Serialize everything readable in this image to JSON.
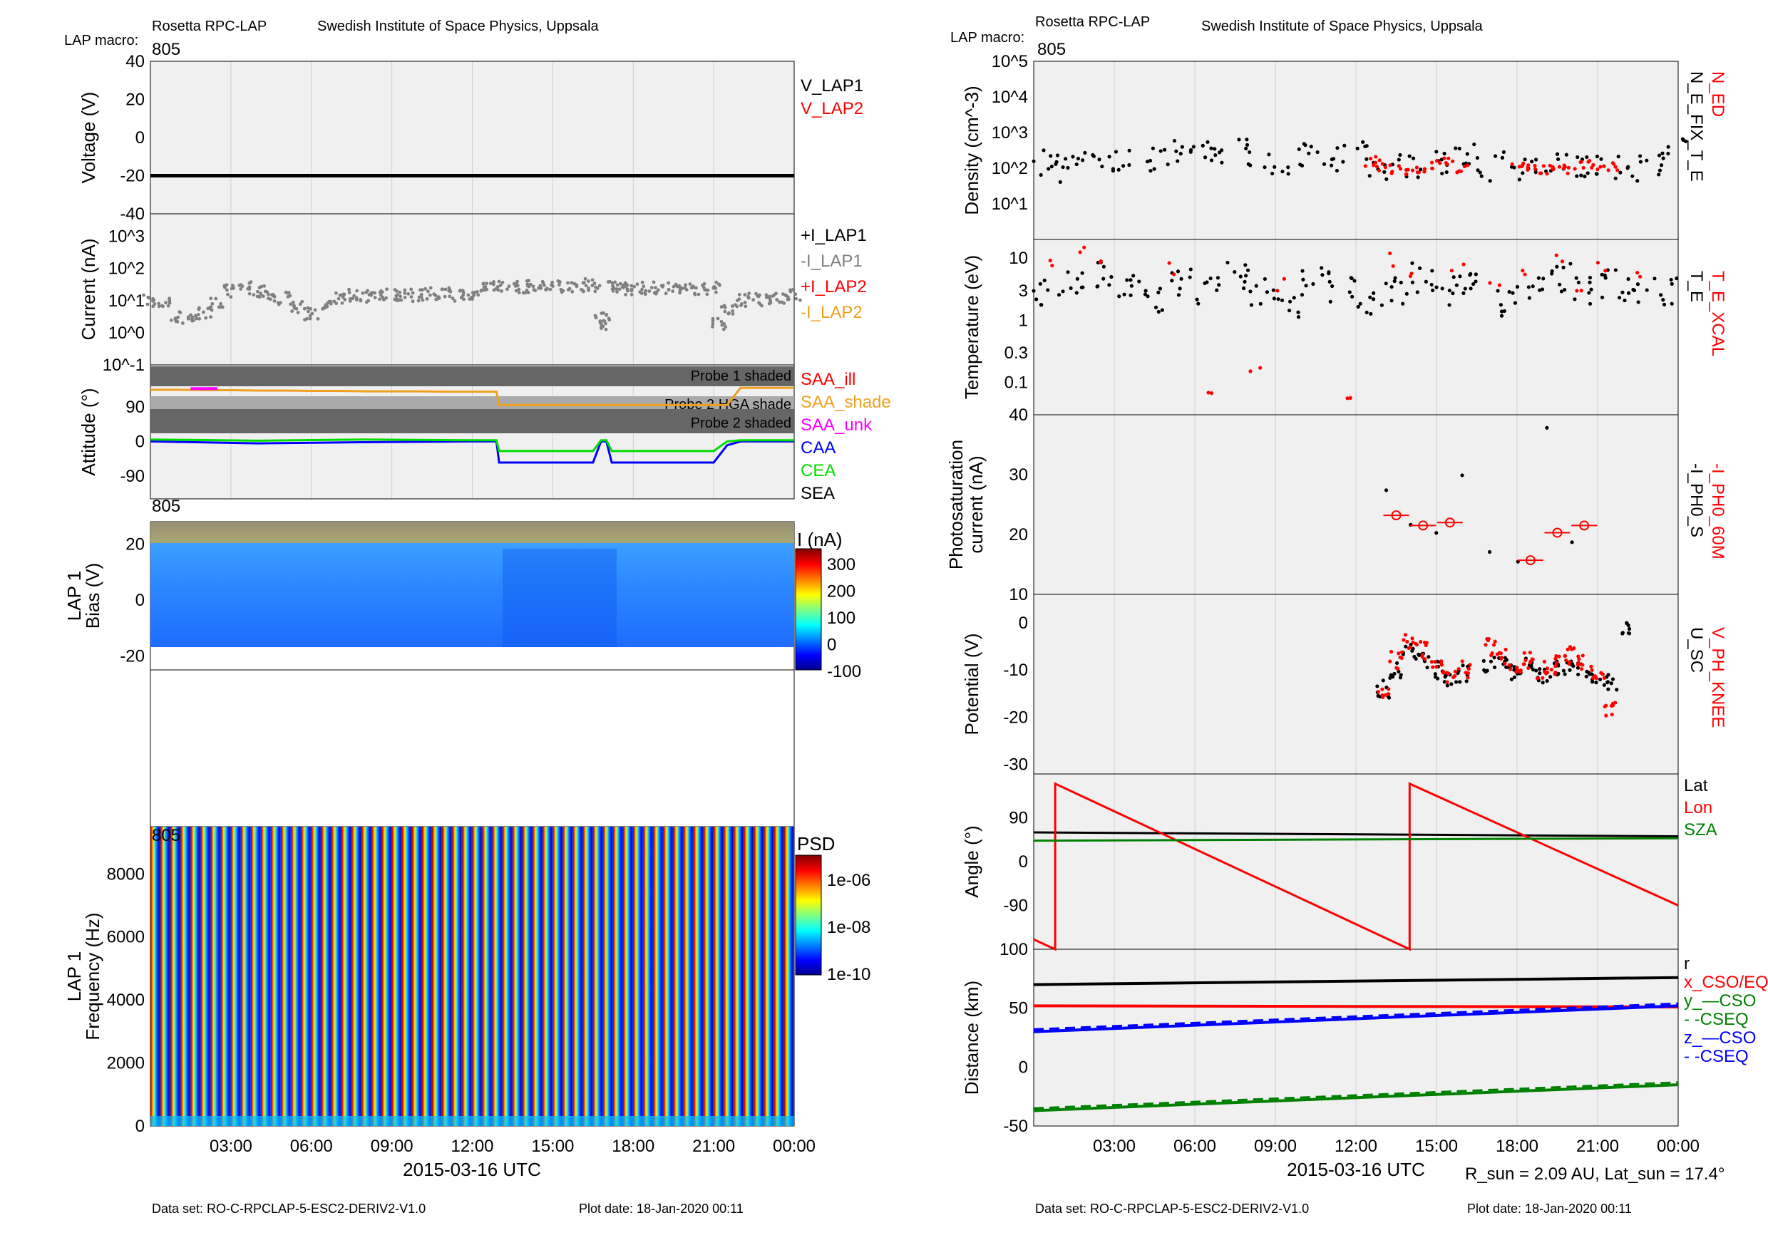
{
  "left": {
    "header": {
      "project": "Rosetta RPC-LAP",
      "institute": "Swedish Institute of Space Physics, Uppsala",
      "macro_label": "LAP macro:",
      "macro_value": "805"
    },
    "footer": {
      "dataset": "Data set: RO-C-RPCLAP-5-ESC2-DERIV2-V1.0",
      "plotdate": "Plot date: 18-Jan-2020 00:11"
    },
    "xlabel": "2015-03-16 UTC",
    "x_ticks": [
      "03:00",
      "06:00",
      "09:00",
      "12:00",
      "15:00",
      "18:00",
      "21:00",
      "00:00"
    ]
  },
  "right": {
    "header": {
      "project": "Rosetta RPC-LAP",
      "institute": "Swedish Institute of Space Physics, Uppsala",
      "macro_label": "LAP macro:",
      "macro_value": "805"
    },
    "footer": {
      "dataset": "Data set: RO-C-RPCLAP-5-ESC2-DERIV2-V1.0",
      "plotdate": "Plot date: 18-Jan-2020 00:11"
    },
    "xlabel": "2015-03-16 UTC",
    "x_ticks": [
      "03:00",
      "06:00",
      "09:00",
      "12:00",
      "15:00",
      "18:00",
      "21:00",
      "00:00"
    ],
    "rsun_note": "R_sun = 2.09 AU, Lat_sun = 17.4°"
  },
  "chart_data": [
    {
      "id": "voltage",
      "type": "line",
      "ylabel": "Voltage (V)",
      "ylim": [
        -40,
        40
      ],
      "y_ticks": [
        "40",
        "20",
        "0",
        "-20",
        "-40"
      ],
      "legend": [
        "V_LAP1",
        "V_LAP2"
      ],
      "series": [
        {
          "name": "V_LAP1",
          "x_hours": [
            0,
            24
          ],
          "values": [
            -20,
            -20
          ],
          "color": "#000000"
        },
        {
          "name": "V_LAP2",
          "x_hours": [],
          "values": [],
          "color": "#ff0000"
        }
      ]
    },
    {
      "id": "current",
      "type": "scatter",
      "yscale": "log",
      "ylabel": "Current (nA)",
      "ylim": [
        0.1,
        5000
      ],
      "y_ticks": [
        "10^3",
        "10^2",
        "10^1",
        "10^0",
        "10^-1"
      ],
      "legend": [
        "+I_LAP1",
        "-I_LAP1",
        "+I_LAP2",
        "-I_LAP2"
      ],
      "series": [
        {
          "name": "-I_LAP1",
          "color": "#808080",
          "x_hours": [
            0,
            0.5,
            1,
            1.5,
            2,
            2.5,
            3,
            3.5,
            4,
            4.5,
            5,
            5.5,
            6,
            6.5,
            7,
            7.5,
            8,
            8.5,
            9,
            9.5,
            10,
            10.5,
            11,
            11.5,
            12,
            12.5,
            13,
            13.5,
            14,
            14.5,
            15,
            15.5,
            16,
            16.5,
            16.8,
            17,
            17.2,
            17.5,
            18,
            18.5,
            19,
            19.5,
            20,
            20.5,
            21,
            21.2,
            21.5,
            22,
            22.5,
            23,
            23.5,
            24
          ],
          "values": [
            10,
            8,
            3,
            3,
            4,
            8,
            20,
            25,
            18,
            15,
            12,
            6,
            4,
            6,
            12,
            15,
            14,
            16,
            15,
            16,
            14,
            17,
            16,
            15,
            14,
            30,
            28,
            27,
            27,
            26,
            27,
            28,
            30,
            28,
            3,
            2,
            25,
            24,
            24,
            24,
            25,
            24,
            24,
            24,
            24,
            2,
            6,
            10,
            12,
            10,
            12,
            14
          ]
        }
      ]
    },
    {
      "id": "attitude",
      "type": "line",
      "ylabel": "Attitude (°)",
      "ylim": [
        -150,
        200
      ],
      "y_ticks": [
        "90",
        "0",
        "-90"
      ],
      "shading": [
        "Probe 1 shaded",
        "Probe 2 HGA shade",
        "Probe 2 shaded"
      ],
      "legend": [
        "SAA_ill",
        "SAA_shade",
        "SAA_unk",
        "CAA",
        "CEA",
        "SEA"
      ],
      "series": [
        {
          "name": "SAA_shade",
          "color": "#f0a020",
          "x_hours": [
            0,
            1,
            2,
            3,
            4,
            5,
            6,
            7,
            8,
            9,
            10,
            11,
            12,
            12.9,
            13,
            14,
            15,
            16,
            16.5,
            17,
            18,
            19,
            20,
            21,
            21.5,
            22,
            23,
            24
          ],
          "values": [
            135,
            135,
            134,
            134,
            133,
            133,
            132,
            132,
            131,
            131,
            131,
            130,
            130,
            130,
            95,
            95,
            95,
            95,
            95,
            95,
            95,
            95,
            95,
            95,
            95,
            140,
            140,
            140
          ]
        },
        {
          "name": "SAA_unk",
          "color": "#ff00ff",
          "x_hours": [
            1.5,
            2.5
          ],
          "values": [
            138,
            138
          ]
        },
        {
          "name": "CAA",
          "color": "#0000ff",
          "x_hours": [
            0,
            4,
            8,
            12,
            12.9,
            13,
            16.5,
            16.8,
            17,
            17.2,
            17.5,
            20,
            21,
            21.5,
            22,
            24
          ],
          "values": [
            0,
            -5,
            -2,
            0,
            0,
            -55,
            -55,
            0,
            0,
            -55,
            -55,
            -55,
            -55,
            -10,
            0,
            0
          ]
        },
        {
          "name": "CEA",
          "color": "#00dd00",
          "x_hours": [
            0,
            4,
            8,
            12,
            12.9,
            13,
            16.5,
            16.8,
            17,
            17.2,
            17.5,
            20,
            21,
            21.5,
            22,
            24
          ],
          "values": [
            5,
            2,
            5,
            3,
            3,
            -25,
            -25,
            3,
            3,
            -25,
            -25,
            -25,
            -25,
            0,
            3,
            3
          ]
        }
      ]
    },
    {
      "id": "bias_sweep",
      "type": "heatmap",
      "label_top": "805",
      "ylabel": "LAP 1 Bias (V)",
      "ylim": [
        -25,
        28
      ],
      "y_ticks": [
        "20",
        "0",
        "-20"
      ],
      "colorbar_label": "I (nA)",
      "colorbar_ticks": [
        "300",
        "200",
        "100",
        "0",
        "-100"
      ],
      "clim": [
        -100,
        330
      ]
    },
    {
      "id": "psd",
      "type": "heatmap",
      "label_top": "805",
      "ylabel": "LAP 1 Frequency (Hz)",
      "ylim": [
        0,
        9500
      ],
      "y_ticks": [
        "8000",
        "6000",
        "4000",
        "2000",
        "0"
      ],
      "colorbar_label": "PSD",
      "colorbar_ticks": [
        "1e-06",
        "1e-08",
        "1e-10"
      ],
      "stripes": 64
    },
    {
      "id": "density",
      "type": "scatter",
      "yscale": "log",
      "ylabel": "Density (cm^-3)",
      "ylim": [
        1,
        100000
      ],
      "y_ticks": [
        "10^5",
        "10^4",
        "10^3",
        "10^2",
        "10^1"
      ],
      "legend": [
        "N_ED",
        "N_E_FIX_T_E"
      ],
      "series": [
        {
          "name": "N_E_FIX_T_E",
          "color": "#000000",
          "x_hours": [
            0.5,
            1,
            2,
            3,
            4,
            5,
            6,
            7,
            8,
            9,
            10,
            11,
            12,
            13,
            14,
            15,
            16,
            17,
            18,
            19,
            20,
            21,
            22,
            23,
            23.8
          ],
          "values": [
            150,
            100,
            120,
            200,
            150,
            300,
            400,
            200,
            300,
            120,
            200,
            150,
            300,
            120,
            100,
            150,
            200,
            100,
            120,
            100,
            150,
            100,
            90,
            100,
            300
          ]
        },
        {
          "name": "N_ED",
          "color": "#ff0000",
          "x_hours": [
            12.5,
            13,
            13.5,
            14,
            14.5,
            15,
            15.5,
            16,
            18,
            18.5,
            19,
            19.5,
            20,
            20.5,
            21,
            21.5
          ],
          "values": [
            150,
            120,
            100,
            80,
            100,
            120,
            150,
            100,
            100,
            120,
            90,
            110,
            100,
            130,
            90,
            100
          ]
        }
      ]
    },
    {
      "id": "temperature",
      "type": "scatter",
      "yscale": "log",
      "ylabel": "Temperature (eV)",
      "ylim": [
        0.03,
        20
      ],
      "y_ticks": [
        "10",
        "3",
        "1",
        "0.3",
        "0.1"
      ],
      "legend": [
        "T_E_XCAL",
        "T_E"
      ],
      "series": [
        {
          "name": "T_E",
          "color": "#000000",
          "x_hours": [
            0.5,
            1.5,
            2.5,
            3.5,
            4.5,
            5.5,
            6.5,
            7.5,
            8.5,
            9.5,
            10.5,
            11.5,
            12.5,
            13.5,
            14.5,
            15.5,
            16.5,
            17.5,
            18.5,
            19.5,
            20.5,
            21.5,
            22.5,
            23.5
          ],
          "values": [
            3,
            4,
            5,
            3,
            2,
            4,
            3,
            5,
            3,
            2,
            4,
            3,
            2,
            3,
            5,
            3,
            4,
            2,
            3,
            5,
            3,
            4,
            3,
            3
          ]
        },
        {
          "name": "T_E_XCAL",
          "color": "#ff0000",
          "x_hours": [
            0.8,
            1.8,
            2.6,
            5,
            6.5,
            8.2,
            9.1,
            11.5,
            13.2,
            14.2,
            15.8,
            17.2,
            18.5,
            19.4,
            20.4,
            21.3,
            22.6
          ],
          "values": [
            8,
            12,
            10,
            6,
            0.05,
            0.2,
            4,
            0.05,
            10,
            6,
            8,
            5,
            7,
            9,
            4,
            8,
            6
          ]
        }
      ]
    },
    {
      "id": "photosaturation",
      "type": "scatter",
      "ylabel": "Photosaturation current (nA)",
      "ylim": [
        10,
        40
      ],
      "y_ticks": [
        "40",
        "30",
        "20",
        "10"
      ],
      "legend": [
        "-I_PH0_60M",
        "-I_PH0_S"
      ],
      "series": [
        {
          "name": "-I_PH0_60M",
          "color": "#ff0000",
          "x_hours": [
            13.5,
            14.5,
            15.5,
            18.5,
            19.5,
            20.5
          ],
          "values": [
            23.2,
            21.5,
            22,
            15.7,
            20.3,
            21.5
          ]
        },
        {
          "name": "-I_PH0_S",
          "color": "#000000",
          "x_hours": [
            13,
            14,
            15,
            16,
            17,
            18,
            19,
            20
          ],
          "values": [
            27.5,
            22,
            20,
            29.5,
            17.5,
            15,
            37.5,
            19
          ]
        }
      ]
    },
    {
      "id": "potential",
      "type": "scatter",
      "ylabel": "Potential (V)",
      "ylim": [
        -32,
        6
      ],
      "y_ticks": [
        "0",
        "-10",
        "-20",
        "-30"
      ],
      "legend": [
        "V_PH_KNEE",
        "U_SC"
      ],
      "series": [
        {
          "name": "U_SC",
          "color": "#000000",
          "x_hours": [
            13,
            13.5,
            14,
            14.5,
            15,
            15.5,
            16,
            17,
            17.5,
            18,
            18.5,
            19,
            19.5,
            20,
            20.5,
            21,
            21.5,
            22
          ],
          "values": [
            -14,
            -10,
            -6,
            -8,
            -10,
            -12,
            -11,
            -9,
            -8,
            -10,
            -9,
            -11,
            -10,
            -9,
            -10,
            -12,
            -13,
            -1
          ]
        },
        {
          "name": "V_PH_KNEE",
          "color": "#ff0000",
          "x_hours": [
            13,
            13.5,
            14,
            14.5,
            15,
            15.5,
            16,
            17,
            17.5,
            18,
            18.5,
            19,
            19.5,
            20,
            20.5,
            21,
            21.5
          ],
          "values": [
            -16,
            -8,
            -4,
            -6,
            -9,
            -12,
            -10,
            -5,
            -7,
            -9,
            -8,
            -10,
            -9,
            -7,
            -8,
            -11,
            -18
          ]
        }
      ]
    },
    {
      "id": "angle",
      "type": "line",
      "ylabel": "Angle (°)",
      "ylim": [
        -180,
        180
      ],
      "y_ticks": [
        "90",
        "0",
        "-90"
      ],
      "legend": [
        "Lat",
        "Lon",
        "SZA"
      ],
      "series": [
        {
          "name": "Lat",
          "color": "#000000",
          "x_hours": [
            0,
            24
          ],
          "values": [
            60,
            52
          ]
        },
        {
          "name": "Lon",
          "color": "#ff0000",
          "x_hours": [
            0,
            0.8,
            0.8,
            14,
            14,
            24
          ],
          "values": [
            -160,
            -180,
            160,
            -180,
            160,
            -90
          ]
        },
        {
          "name": "SZA",
          "color": "#008000",
          "x_hours": [
            0,
            24
          ],
          "values": [
            43,
            48
          ]
        }
      ]
    },
    {
      "id": "distance",
      "type": "line",
      "ylabel": "Distance (km)",
      "ylim": [
        -50,
        100
      ],
      "y_ticks": [
        "100",
        "50",
        "0",
        "-50"
      ],
      "legend": [
        "r",
        "x_CSO/EQ",
        "y_—CSO",
        "- -CSEQ",
        "z_—CSO",
        "- -CSEQ"
      ],
      "series": [
        {
          "name": "r",
          "color": "#000000",
          "x_hours": [
            0,
            24
          ],
          "values": [
            70,
            76
          ]
        },
        {
          "name": "x_CSO/EQ",
          "color": "#ff0000",
          "x_hours": [
            0,
            24
          ],
          "values": [
            52,
            51
          ]
        },
        {
          "name": "z_—CSO",
          "color": "#0000ff",
          "x_hours": [
            0,
            24
          ],
          "values": [
            30,
            52
          ]
        },
        {
          "name": "y_—CSO",
          "color": "#008000",
          "x_hours": [
            0,
            24
          ],
          "values": [
            -37,
            -15
          ]
        }
      ]
    }
  ]
}
